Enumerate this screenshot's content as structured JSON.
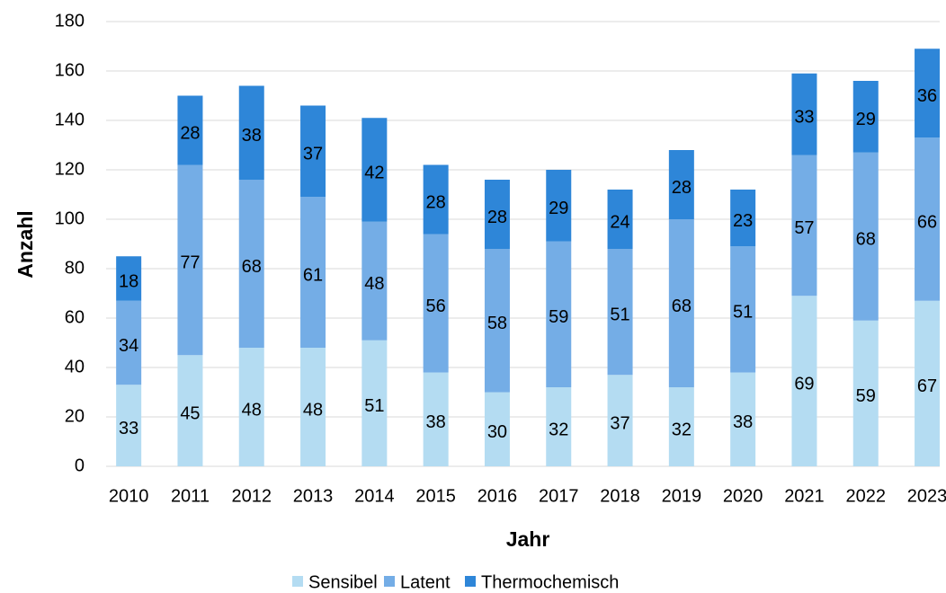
{
  "chart_data": {
    "type": "stacked_bar",
    "x_label": "Jahr",
    "y_label": "Anzahl",
    "categories": [
      "2010",
      "2011",
      "2012",
      "2013",
      "2014",
      "2015",
      "2016",
      "2017",
      "2018",
      "2019",
      "2020",
      "2021",
      "2022",
      "2023"
    ],
    "series": [
      {
        "name": "Sensibel",
        "color": "#b4dcf2",
        "values": [
          33,
          45,
          48,
          48,
          51,
          38,
          30,
          32,
          37,
          32,
          38,
          69,
          59,
          67
        ]
      },
      {
        "name": "Latent",
        "color": "#74ade6",
        "values": [
          34,
          77,
          68,
          61,
          48,
          56,
          58,
          59,
          51,
          68,
          51,
          57,
          68,
          66
        ]
      },
      {
        "name": "Thermochemisch",
        "color": "#2e86d8",
        "values": [
          18,
          28,
          38,
          37,
          42,
          28,
          28,
          29,
          24,
          28,
          23,
          33,
          29,
          36
        ]
      }
    ],
    "ylim": [
      0,
      180
    ],
    "yticks": [
      0,
      20,
      40,
      60,
      80,
      100,
      120,
      140,
      160,
      180
    ],
    "grid": true,
    "legend": "bottom"
  }
}
